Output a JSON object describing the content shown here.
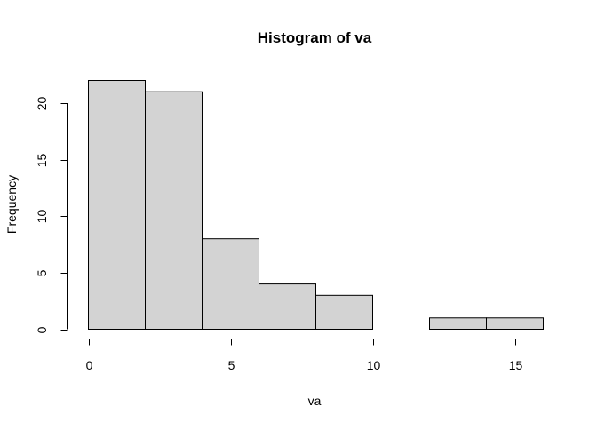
{
  "chart_data": {
    "type": "bar",
    "title": "Histogram of va",
    "xlabel": "va",
    "ylabel": "Frequency",
    "bin_edges": [
      0,
      2,
      4,
      6,
      8,
      10,
      12,
      14,
      16
    ],
    "values": [
      22,
      21,
      8,
      4,
      3,
      0,
      1,
      1
    ],
    "xlim": [
      0,
      16
    ],
    "ylim": [
      0,
      22
    ],
    "x_ticks": [
      0,
      5,
      10,
      15
    ],
    "y_ticks": [
      0,
      5,
      10,
      15,
      20
    ],
    "bar_fill": "#d3d3d3",
    "bar_stroke": "#000000",
    "grid": false,
    "legend": "none"
  }
}
